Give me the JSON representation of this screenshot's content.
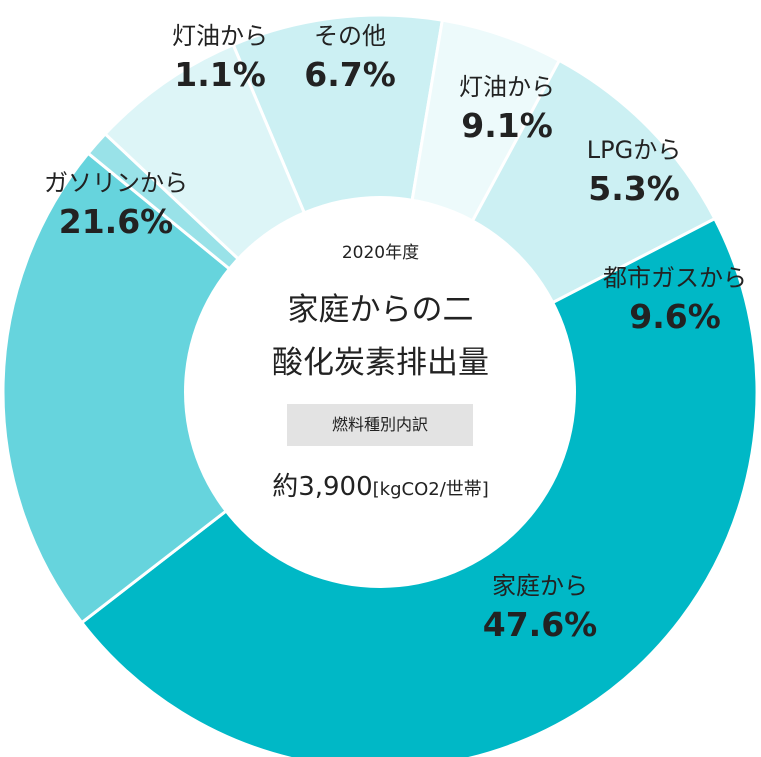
{
  "chart_data": {
    "type": "pie",
    "title": "家庭からの二酸化炭素排出量",
    "year": "2020年度",
    "subtitle": "燃料種別内訳",
    "total_value": "約3,900",
    "total_unit": "[kgCO2/世帯]",
    "slices": [
      {
        "label": "灯油から",
        "value": 9.1,
        "value_label": "9.1%",
        "color": "#ccf0f3"
      },
      {
        "label": "LPGから",
        "value": 5.3,
        "value_label": "5.3%",
        "color": "#edfafb"
      },
      {
        "label": "都市ガスから",
        "value": 9.6,
        "value_label": "9.6%",
        "color": "#ccf0f3"
      },
      {
        "label": "家庭から",
        "value": 47.6,
        "value_label": "47.6%",
        "color": "#00b8c6"
      },
      {
        "label": "ガソリンから",
        "value": 21.6,
        "value_label": "21.6%",
        "color": "#66d4dd"
      },
      {
        "label": "灯油から",
        "value": 1.1,
        "value_label": "1.1%",
        "color": "#99e2e8"
      },
      {
        "label": "その他",
        "value": 6.7,
        "value_label": "6.7%",
        "color": "#ddf5f7"
      }
    ]
  }
}
